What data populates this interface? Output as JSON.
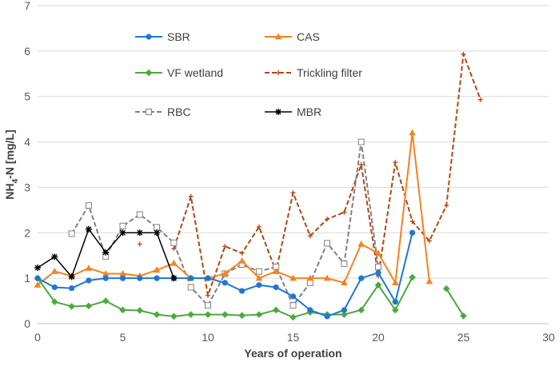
{
  "chart_data": {
    "type": "line",
    "title": "",
    "xlabel": "Years of operation",
    "ylabel_main": "NH",
    "ylabel_sub": "4",
    "ylabel_rest": "-N [mg/L]",
    "xlim": [
      0,
      30
    ],
    "ylim": [
      0,
      7
    ],
    "xticks": [
      0,
      5,
      10,
      15,
      20,
      25,
      30
    ],
    "yticks": [
      0,
      1,
      2,
      3,
      4,
      5,
      6,
      7
    ],
    "grid": "horizontal",
    "legend_position": "top-left",
    "series": [
      {
        "name": "SBR",
        "color": "#1f77d4",
        "dash": "solid",
        "marker": "circle",
        "points": [
          [
            0,
            1.0
          ],
          [
            1,
            0.8
          ],
          [
            2,
            0.78
          ],
          [
            3,
            0.95
          ],
          [
            4,
            1.0
          ],
          [
            5,
            1.0
          ],
          [
            6,
            1.0
          ],
          [
            7,
            1.0
          ],
          [
            8,
            1.0
          ],
          [
            9,
            1.0
          ],
          [
            10,
            1.0
          ],
          [
            11,
            0.9
          ],
          [
            12,
            0.72
          ],
          [
            13,
            0.85
          ],
          [
            14,
            0.8
          ],
          [
            15,
            0.6
          ],
          [
            16,
            0.3
          ],
          [
            17,
            0.16
          ],
          [
            18,
            0.3
          ],
          [
            19,
            1.0
          ],
          [
            20,
            1.12
          ],
          [
            21,
            0.48
          ],
          [
            22,
            2.0
          ]
        ]
      },
      {
        "name": "CAS",
        "color": "#f58220",
        "dash": "solid",
        "marker": "triangle",
        "points": [
          [
            0,
            0.85
          ],
          [
            1,
            1.15
          ],
          [
            2,
            1.05
          ],
          [
            3,
            1.22
          ],
          [
            4,
            1.1
          ],
          [
            5,
            1.1
          ],
          [
            6,
            1.05
          ],
          [
            7,
            1.18
          ],
          [
            8,
            1.33
          ],
          [
            9,
            1.0
          ],
          [
            10,
            1.0
          ],
          [
            11,
            1.1
          ],
          [
            12,
            1.38
          ],
          [
            13,
            1.0
          ],
          [
            14,
            1.15
          ],
          [
            15,
            1.0
          ],
          [
            16,
            1.0
          ],
          [
            17,
            1.0
          ],
          [
            18,
            0.9
          ],
          [
            19,
            1.75
          ],
          [
            20,
            1.55
          ],
          [
            21,
            0.9
          ],
          [
            22,
            4.2
          ],
          [
            23,
            0.93
          ]
        ]
      },
      {
        "name": "VF wetland",
        "color": "#4aaa3c",
        "dash": "solid",
        "marker": "diamond",
        "points": [
          [
            0,
            1.0
          ],
          [
            1,
            0.48
          ],
          [
            2,
            0.38
          ],
          [
            3,
            0.39
          ],
          [
            4,
            0.5
          ],
          [
            5,
            0.3
          ],
          [
            6,
            0.29
          ],
          [
            7,
            0.2
          ],
          [
            8,
            0.16
          ],
          [
            9,
            0.2
          ],
          [
            10,
            0.2
          ],
          [
            11,
            0.2
          ],
          [
            12,
            0.18
          ],
          [
            13,
            0.2
          ],
          [
            14,
            0.3
          ],
          [
            15,
            0.14
          ],
          [
            16,
            0.25
          ],
          [
            17,
            0.2
          ],
          [
            18,
            0.2
          ],
          [
            19,
            0.3
          ],
          [
            20,
            0.85
          ],
          [
            21,
            0.3
          ],
          [
            22,
            1.02
          ],
          null,
          [
            24,
            0.77
          ],
          [
            25,
            0.17
          ]
        ]
      },
      {
        "name": "Trickling filter",
        "color": "#b5460f",
        "dash": "dash",
        "marker": "plus",
        "points": [
          [
            6,
            1.75
          ],
          null,
          [
            8,
            1.65
          ],
          [
            9,
            2.8
          ],
          [
            10,
            0.62
          ],
          [
            11,
            1.7
          ],
          [
            12,
            1.55
          ],
          [
            13,
            2.13
          ],
          [
            14,
            1.15
          ],
          [
            15,
            2.88
          ],
          [
            16,
            1.93
          ],
          [
            17,
            2.3
          ],
          [
            18,
            2.45
          ],
          [
            19,
            3.5
          ],
          [
            20,
            1.05
          ],
          [
            21,
            3.55
          ],
          [
            22,
            2.25
          ],
          [
            23,
            1.82
          ],
          [
            24,
            2.6
          ],
          [
            25,
            5.93
          ],
          [
            26,
            4.93
          ]
        ]
      },
      {
        "name": "RBC",
        "color": "#808080",
        "dash": "dash",
        "marker": "square",
        "points": [
          [
            2,
            1.98
          ],
          [
            3,
            2.6
          ],
          [
            4,
            1.48
          ],
          [
            5,
            2.15
          ],
          [
            6,
            2.4
          ],
          [
            7,
            2.12
          ],
          [
            8,
            1.78
          ],
          [
            9,
            0.8
          ],
          [
            10,
            0.4
          ],
          [
            11,
            1.1
          ],
          [
            12,
            1.3
          ],
          [
            13,
            1.15
          ],
          [
            14,
            1.25
          ],
          [
            15,
            0.4
          ],
          [
            16,
            0.9
          ],
          [
            17,
            1.77
          ],
          [
            18,
            1.32
          ],
          [
            19,
            4.0
          ],
          [
            20,
            1.25
          ]
        ]
      },
      {
        "name": "MBR",
        "color": "#000000",
        "dash": "solid",
        "marker": "star",
        "points": [
          [
            0,
            1.23
          ],
          [
            1,
            1.47
          ],
          [
            2,
            1.03
          ],
          [
            3,
            2.08
          ],
          [
            4,
            1.57
          ],
          [
            5,
            2.0
          ],
          [
            6,
            2.0
          ],
          [
            7,
            2.0
          ],
          [
            8,
            1.0
          ]
        ]
      }
    ]
  }
}
